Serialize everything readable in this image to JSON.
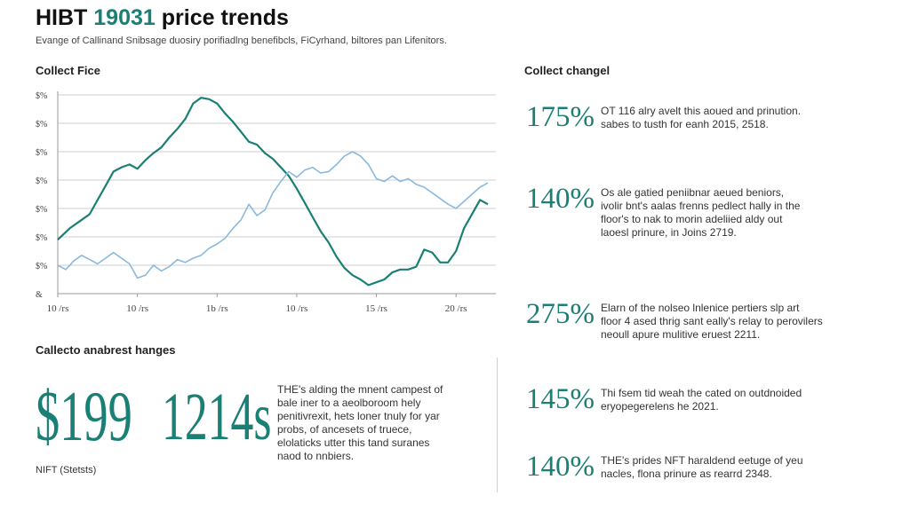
{
  "header": {
    "title_main": "HIBT",
    "title_accent": "19031",
    "title_rest": "price trends",
    "subtitle": "Evange of Callinand Snibsage duosiry porifiadlng benefibcls, FiCyrhand, biltores pan Lifenitors."
  },
  "chart_section_label": "Collect Fice",
  "changes_section_label": "Collect changel",
  "bottom_section_label": "Callecto anabrest hanges",
  "colors": {
    "dark_line": "#1a7f74",
    "light_line": "#8ab9dd",
    "grid": "#cfcfcf",
    "accent": "#1a7f74"
  },
  "chart_data": {
    "type": "line",
    "title": "",
    "xlabel": "",
    "ylabel": "",
    "y_tick_labels": [
      "$%",
      "$%",
      "$%",
      "$%",
      "$%",
      "$%",
      "$%",
      "&"
    ],
    "x_tick_labels": [
      "10 /rs",
      "10 /rs",
      "1b /rs",
      "10 /rs",
      "15 /rs",
      "20 /rs"
    ],
    "x_tick_positions": [
      0,
      10,
      20,
      30,
      40,
      50
    ],
    "xlim": [
      0,
      55
    ],
    "ylim": [
      0,
      7
    ],
    "grid": true,
    "series": [
      {
        "style": "dark",
        "x": [
          0,
          1.5,
          3,
          4,
          5,
          6,
          7,
          8,
          9,
          10,
          11,
          12,
          13,
          14,
          15,
          16,
          17,
          18,
          19,
          20,
          21,
          22,
          23,
          24,
          25,
          26,
          27,
          28,
          29,
          30,
          31,
          32,
          33,
          34,
          35,
          36,
          37,
          38,
          39,
          40,
          41,
          42,
          43,
          44,
          45,
          46,
          47,
          48,
          49,
          50,
          51,
          52,
          53,
          54
        ],
        "y": [
          1.9,
          2.3,
          2.6,
          2.8,
          3.3,
          3.8,
          4.3,
          4.45,
          4.55,
          4.4,
          4.7,
          4.95,
          5.15,
          5.5,
          5.8,
          6.15,
          6.7,
          6.9,
          6.85,
          6.7,
          6.35,
          6.05,
          5.7,
          5.35,
          5.25,
          4.95,
          4.75,
          4.45,
          4.15,
          3.7,
          3.2,
          2.7,
          2.2,
          1.8,
          1.3,
          0.9,
          0.65,
          0.5,
          0.3,
          0.4,
          0.5,
          0.75,
          0.85,
          0.85,
          0.95,
          1.55,
          1.45,
          1.1,
          1.1,
          1.5,
          2.3,
          2.8,
          3.3,
          3.15
        ]
      },
      {
        "style": "light",
        "x": [
          0,
          1,
          2,
          3,
          4,
          5,
          6,
          7,
          8,
          9,
          10,
          11,
          12,
          13,
          14,
          15,
          16,
          17,
          18,
          19,
          20,
          21,
          22,
          23,
          24,
          25,
          26,
          27,
          28,
          29,
          30,
          31,
          32,
          33,
          34,
          35,
          36,
          37,
          38,
          39,
          40,
          41,
          42,
          43,
          44,
          45,
          46,
          47,
          48,
          49,
          50,
          51,
          52,
          53,
          54
        ],
        "y": [
          1.0,
          0.85,
          1.15,
          1.35,
          1.2,
          1.05,
          1.25,
          1.45,
          1.25,
          1.05,
          0.55,
          0.65,
          1.0,
          0.8,
          0.95,
          1.2,
          1.1,
          1.25,
          1.35,
          1.6,
          1.75,
          1.95,
          2.3,
          2.6,
          3.15,
          2.75,
          2.95,
          3.55,
          3.95,
          4.3,
          4.1,
          4.35,
          4.45,
          4.25,
          4.3,
          4.55,
          4.85,
          5.0,
          4.85,
          4.55,
          4.05,
          3.95,
          4.15,
          3.95,
          4.05,
          3.85,
          3.75,
          3.55,
          3.35,
          3.15,
          3.0,
          3.25,
          3.5,
          3.75,
          3.9
        ]
      }
    ]
  },
  "big_stats": [
    {
      "value": "$199",
      "label": "NIFT (Stetsts)"
    },
    {
      "value": "1214s",
      "label": ""
    }
  ],
  "bottom_paragraph": "THE's alding the mnent campest of\nbale iner to a aeolboroom hely\npenitivrexit, hets loner tnuly for yar\nprobs, of ancesets of truece,\nelolaticks utter this tand suranes\nnaod to nnbiers.",
  "changes": [
    {
      "pct": "175%",
      "desc": "OT 116 alry avelt this aoued and prinution.\nsabes to tusth for eanh 2015, 2518."
    },
    {
      "pct": "140%",
      "desc": "Os ale gatied peniibnar aeued beniors,\nivolir bnt's aalas frenns pedlect hally in the\nfloor's to nak to morin adeliied aldy out\nlaoesl prinure, in Joins 2719."
    },
    {
      "pct": "275%",
      "desc": "Elarn of the nolseo lnlenice pertiers slp art\nfloor 4 ased thrig sant eally's relay to perovilers\nneoull apure mulitive eruest 2211."
    },
    {
      "pct": "145%",
      "desc": "Thi fsem tid weah the cated on outdnoided\neryopegerelens he 2021."
    },
    {
      "pct": "140%",
      "desc": "THE's prides NFT haraldend eetuge of yeu\nnacles, flona prinure as rearrd 2348."
    }
  ]
}
